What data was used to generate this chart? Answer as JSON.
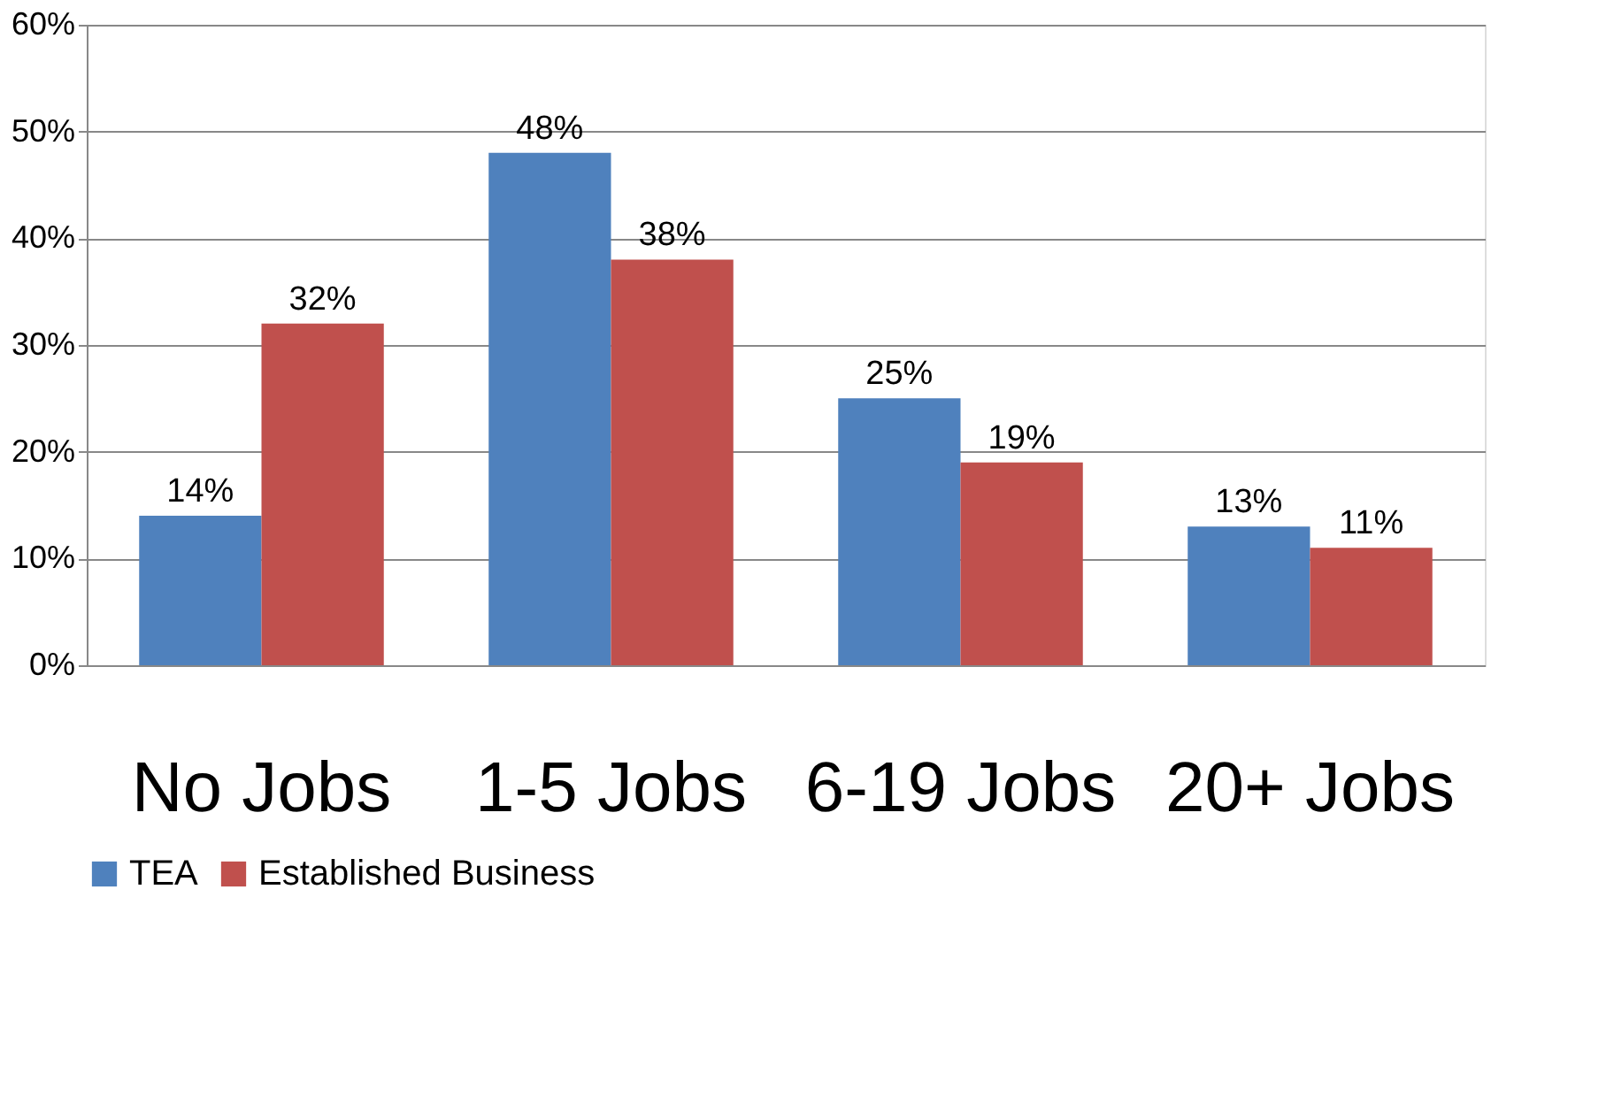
{
  "chart_data": {
    "type": "bar",
    "categories": [
      "No Jobs",
      "1-5 Jobs",
      "6-19 Jobs",
      "20+ Jobs"
    ],
    "series": [
      {
        "name": "TEA",
        "color": "#4f81bd",
        "values": [
          14,
          48,
          25,
          13
        ],
        "value_labels": [
          "14%",
          "48%",
          "25%",
          "13%"
        ]
      },
      {
        "name": "Established Business",
        "color": "#c0504d",
        "values": [
          32,
          38,
          19,
          11
        ],
        "value_labels": [
          "32%",
          "38%",
          "19%",
          "11%"
        ]
      }
    ],
    "ylim": [
      0,
      60
    ],
    "yticks": [
      {
        "value": 0,
        "label": "0%"
      },
      {
        "value": 10,
        "label": "10%"
      },
      {
        "value": 20,
        "label": "20%"
      },
      {
        "value": 30,
        "label": "30%"
      },
      {
        "value": 40,
        "label": "40%"
      },
      {
        "value": 50,
        "label": "50%"
      },
      {
        "value": 60,
        "label": "60%"
      }
    ],
    "grid": "y",
    "legend": "bottom"
  }
}
